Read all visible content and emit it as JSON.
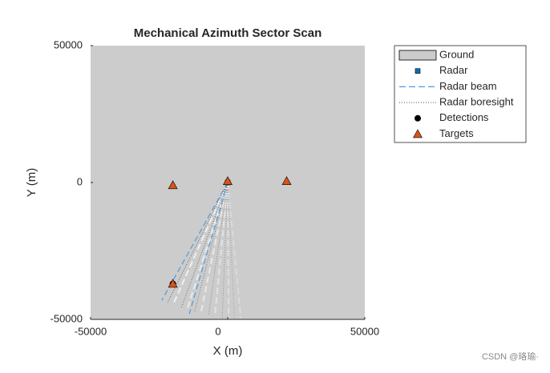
{
  "chart_data": {
    "type": "scatter",
    "title": "Mechanical Azimuth Sector Scan",
    "xlabel": "X (m)",
    "ylabel": "Y (m)",
    "xlim": [
      -50000,
      50000
    ],
    "ylim": [
      -50000,
      50000
    ],
    "xticks": [
      -50000,
      0,
      50000
    ],
    "yticks": [
      -50000,
      0,
      50000
    ],
    "series": [
      {
        "name": "Ground",
        "color": "#cccccc",
        "marker": "patch"
      },
      {
        "name": "Radar",
        "color": "#0072bd",
        "marker": "square",
        "x": [
          0
        ],
        "values": [
          0
        ]
      },
      {
        "name": "Radar beam",
        "color": "#4d9be0",
        "marker": "dashed",
        "x": [
          -24000,
          -14000
        ],
        "values": [
          -43000,
          -48000
        ]
      },
      {
        "name": "Radar boresight",
        "color": "#555555",
        "marker": "dotted",
        "x": [
          -22000,
          -17000,
          -12000,
          -7000,
          -2000,
          2500
        ],
        "values": [
          -44000,
          -46000,
          -47000,
          -48500,
          -49500,
          -49800
        ]
      },
      {
        "name": "Detections",
        "color": "#000000",
        "marker": "circle",
        "x": [
          -20000
        ],
        "values": [
          -37000
        ]
      },
      {
        "name": "Targets",
        "color": "#d95319",
        "marker": "triangle",
        "x": [
          -20000,
          0,
          21500,
          -20000
        ],
        "values": [
          -1000,
          500,
          500,
          -37000
        ]
      }
    ],
    "watermark": "CSDN @珞瑜·"
  }
}
